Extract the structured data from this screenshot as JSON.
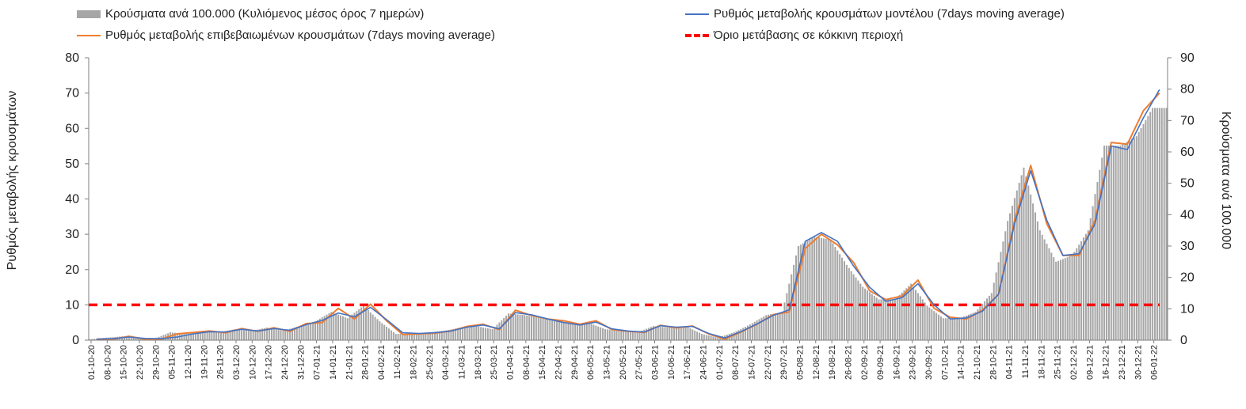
{
  "legend": {
    "bars": "Κρούσματα ανά 100.000 (Κυλιόμενος μέσος όρος 7 ημερών)",
    "model": "Ρυθμός μεταβολής κρουσμάτων μοντέλου (7days moving average)",
    "confirmed": "Ρυθμός μεταβολής επιβεβαιωμένων κρουσμάτων (7days moving average)",
    "threshold": "Όριο μετάβασης σε κόκκινη περιοχή"
  },
  "axes": {
    "ylabel_left": "Ρυθμός μεταβολής κρουσμάτων",
    "ylabel_right": "Κρούσματα ανά 100.000"
  },
  "colors": {
    "bars": "#a6a6a6",
    "model": "#4472c4",
    "confirmed": "#ed7d31",
    "threshold": "#ff0000"
  },
  "chart_data": {
    "type": "bar+line",
    "x_tick_labels": [
      "01-10-20",
      "08-10-20",
      "15-10-20",
      "22-10-20",
      "29-10-20",
      "05-11-20",
      "12-11-20",
      "19-11-20",
      "26-11-20",
      "03-12-20",
      "10-12-20",
      "17-12-20",
      "24-12-20",
      "31-12-20",
      "07-01-21",
      "14-01-21",
      "21-01-21",
      "28-01-21",
      "04-02-21",
      "11-02-21",
      "18-02-21",
      "25-02-21",
      "04-03-21",
      "11-03-21",
      "18-03-21",
      "25-03-21",
      "01-04-21",
      "08-04-21",
      "15-04-21",
      "22-04-21",
      "29-04-21",
      "06-05-21",
      "13-05-21",
      "20-05-21",
      "27-05-21",
      "03-06-21",
      "10-06-21",
      "17-06-21",
      "24-06-21",
      "01-07-21",
      "08-07-21",
      "15-07-21",
      "22-07-21",
      "29-07-21",
      "05-08-21",
      "12-08-21",
      "19-08-21",
      "26-08-21",
      "02-09-21",
      "09-09-21",
      "16-09-21",
      "23-09-21",
      "30-09-21",
      "07-10-21",
      "14-10-21",
      "21-10-21",
      "28-10-21",
      "04-11-21",
      "11-11-21",
      "18-11-21",
      "25-11-21",
      "02-12-21",
      "09-12-21",
      "16-12-21",
      "23-12-21",
      "30-12-21",
      "06-01-22"
    ],
    "left_axis": {
      "ylim": [
        0,
        80
      ],
      "ticks": [
        0,
        10,
        20,
        30,
        40,
        50,
        60,
        70,
        80
      ]
    },
    "right_axis": {
      "ylim": [
        0,
        90
      ],
      "ticks": [
        0,
        10,
        20,
        30,
        40,
        50,
        60,
        70,
        80,
        90
      ]
    },
    "grid": false,
    "legend_position": "top",
    "threshold_value": 10,
    "series": [
      {
        "name": "Κρούσματα ανά 100.000 (Κυλιόμενος μέσος όρος 7 ημερών)",
        "type": "bar",
        "axis": "right",
        "values": [
          0.3,
          0.8,
          1.2,
          0.8,
          0.5,
          2.5,
          2.0,
          3.0,
          2.5,
          3.5,
          3.0,
          4.0,
          3.0,
          4.5,
          6.0,
          9.0,
          7.0,
          11.0,
          6.0,
          2.0,
          2.0,
          2.5,
          3.0,
          4.0,
          4.5,
          3.5,
          8.5,
          8.0,
          7.0,
          6.0,
          5.0,
          5.5,
          3.5,
          3.0,
          2.5,
          4.5,
          4.0,
          4.5,
          2.0,
          0.8,
          2.5,
          5.0,
          8.0,
          9.0,
          30.0,
          33.0,
          32.0,
          24.0,
          17.0,
          13.0,
          13.0,
          18.0,
          11.0,
          7.0,
          7.0,
          9.0,
          15.0,
          38.0,
          55.0,
          35.0,
          25.0,
          27.0,
          35.0,
          62.0,
          62.0,
          65.0,
          74.0
        ]
      },
      {
        "name": "Ρυθμός μεταβολής κρουσμάτων μοντέλου (7days moving average)",
        "type": "line",
        "axis": "left",
        "values": [
          0.3,
          0.4,
          0.9,
          0.5,
          0.4,
          0.9,
          1.8,
          2.4,
          2.3,
          3.1,
          2.6,
          3.3,
          2.8,
          4.4,
          5.6,
          7.7,
          6.6,
          9.3,
          5.8,
          2.1,
          1.9,
          2.1,
          2.6,
          3.7,
          4.3,
          3.2,
          7.8,
          7.2,
          6.0,
          5.0,
          4.3,
          5.1,
          3.2,
          2.6,
          2.3,
          4.1,
          3.7,
          3.9,
          1.9,
          0.6,
          2.4,
          4.6,
          7.0,
          8.6,
          28.0,
          30.5,
          28.0,
          21.0,
          15.0,
          11.0,
          12.0,
          16.0,
          10.0,
          6.0,
          6.3,
          8.2,
          13.0,
          33.0,
          48.0,
          34.0,
          24.0,
          24.5,
          33.0,
          55.0,
          54.0,
          63.0,
          71.0
        ]
      },
      {
        "name": "Ρυθμός μεταβολής επιβεβαιωμένων κρουσμάτων (7days moving average)",
        "type": "line",
        "axis": "left",
        "values": [
          0.3,
          0.3,
          1.1,
          0.3,
          0.3,
          1.8,
          2.2,
          2.6,
          2.1,
          3.3,
          2.5,
          3.5,
          2.5,
          4.7,
          5.0,
          9.0,
          6.0,
          10.2,
          5.5,
          1.6,
          1.8,
          2.0,
          2.6,
          3.9,
          4.5,
          3.0,
          8.5,
          7.0,
          6.0,
          5.5,
          4.5,
          5.5,
          3.0,
          2.5,
          2.2,
          4.2,
          3.5,
          4.0,
          1.8,
          0.3,
          2.3,
          4.5,
          7.2,
          8.0,
          26.0,
          30.0,
          27.0,
          22.0,
          14.0,
          11.5,
          12.5,
          17.0,
          9.0,
          6.5,
          6.0,
          8.5,
          13.0,
          34.0,
          49.5,
          33.0,
          24.0,
          24.0,
          34.0,
          56.0,
          55.5,
          65.0,
          70.0
        ]
      },
      {
        "name": "Όριο μετάβασης σε κόκκινη περιοχή",
        "type": "line",
        "axis": "left",
        "dashed": true,
        "constant": 10
      }
    ]
  }
}
